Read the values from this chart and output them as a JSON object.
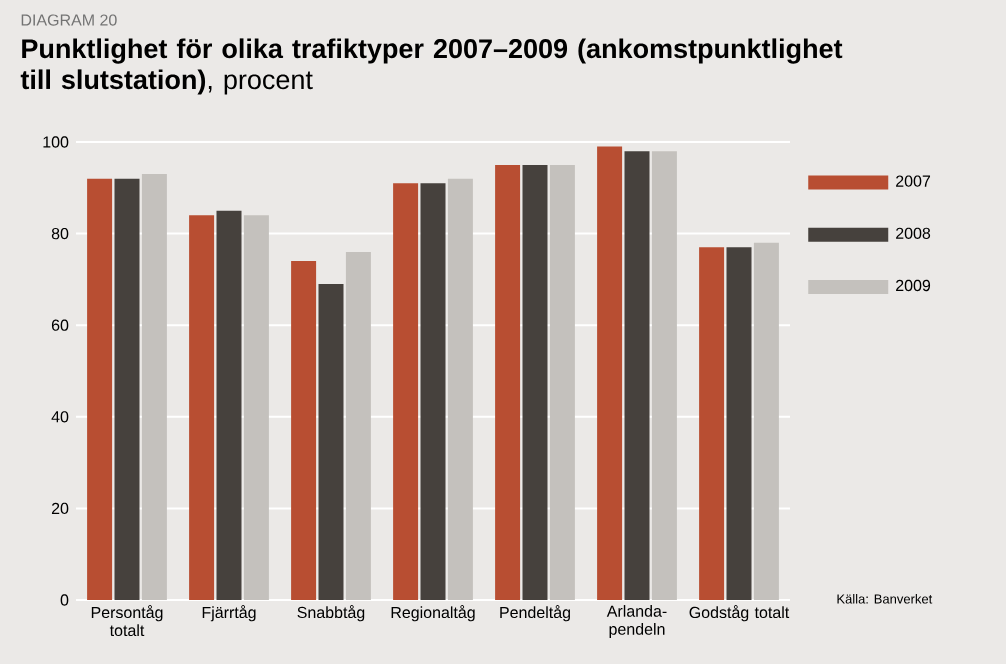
{
  "chart_data": {
    "type": "bar",
    "subtitle": "DIAGRAM 20",
    "title": "**Punktlighet för olika trafiktyper 2007–2009 (ankomstpunktlighet till slutstation)**, procent",
    "categories": [
      "Persontåg totalt",
      "Fjärrtåg",
      "Snabbtåg",
      "Regionaltåg",
      "Pendeltåg",
      "Arlanda-pendeln",
      "Godståg totalt"
    ],
    "series": [
      {
        "name": "2007",
        "color": "#b84e32",
        "values": [
          92,
          84,
          74,
          91,
          95,
          99,
          77
        ]
      },
      {
        "name": "2008",
        "color": "#46413d",
        "values": [
          92,
          85,
          69,
          91,
          95,
          98,
          77
        ]
      },
      {
        "name": "2009",
        "color": "#c4c1bd",
        "values": [
          93,
          84,
          76,
          92,
          95,
          98,
          78
        ]
      }
    ],
    "ylim": [
      0,
      100
    ],
    "yticks": [
      0,
      20,
      40,
      60,
      80,
      100
    ],
    "grid": "y",
    "legend": "right",
    "annotations": [
      "Källa: Banverket"
    ]
  }
}
